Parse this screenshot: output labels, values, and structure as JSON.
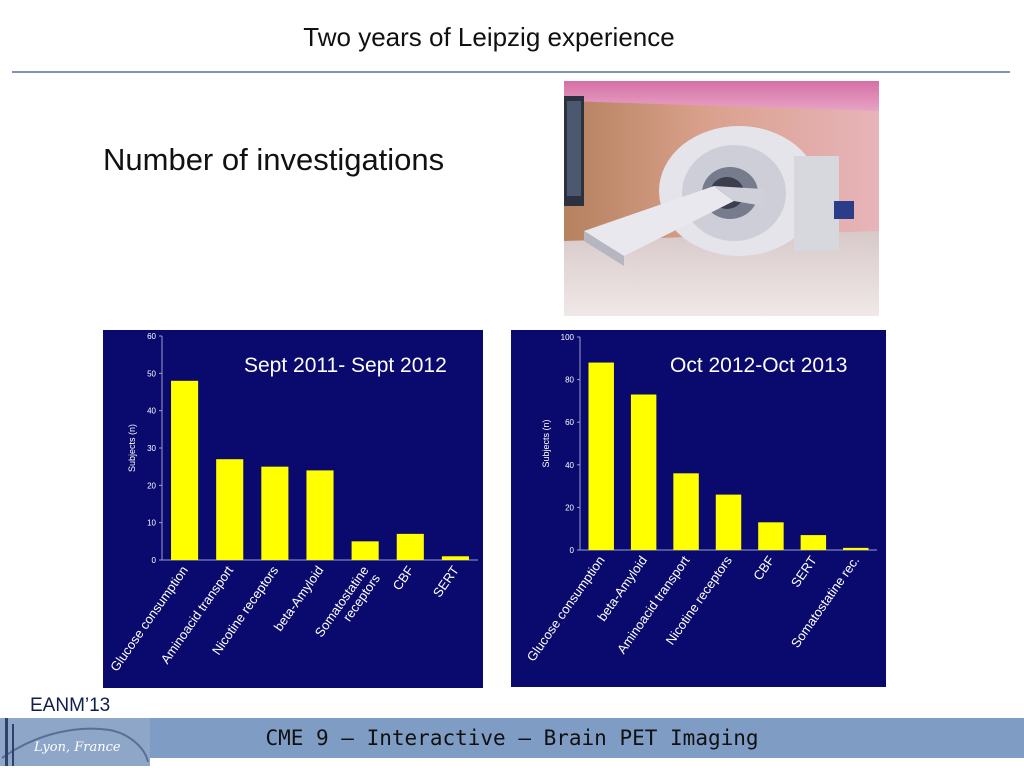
{
  "slide": {
    "title": "Two years of Leipzig experience",
    "heading": "Number of investigations"
  },
  "footer": {
    "text": "CME 9 – Interactive – Brain PET Imaging",
    "logo_text": "EANM’13",
    "logo_city": "Lyon, France"
  },
  "colors": {
    "chart_background": "#0a0a6e",
    "bar": "#ffff00",
    "footer_bar": "#7f9cc4",
    "title_rule": "#7f95ad"
  },
  "chart_data": [
    {
      "type": "bar",
      "title": "Sept 2011- Sept 2012",
      "ylabel": "Subjects (n)",
      "xlabel": "",
      "ylim": [
        0,
        60
      ],
      "yticks": [
        0,
        10,
        20,
        30,
        40,
        50,
        60
      ],
      "categories": [
        "Glucose consumption",
        "Aminoacid transport",
        "Nicotine receptors",
        "beta-Amyloid",
        "Somatostatine receptors",
        "CBF",
        "SERT"
      ],
      "category_lines": [
        [
          "Glucose consumption"
        ],
        [
          "Aminoacid transport"
        ],
        [
          "Nicotine receptors"
        ],
        [
          "beta-Amyloid"
        ],
        [
          "Somatostatine",
          "receptors"
        ],
        [
          "CBF"
        ],
        [
          "SERT"
        ]
      ],
      "values": [
        48,
        27,
        25,
        24,
        5,
        7,
        1
      ]
    },
    {
      "type": "bar",
      "title": "Oct 2012-Oct 2013",
      "ylabel": "Subjects (n)",
      "xlabel": "",
      "ylim": [
        0,
        100
      ],
      "yticks": [
        0,
        20,
        40,
        60,
        80,
        100
      ],
      "categories": [
        "Glucose consumption",
        "beta-Amyloid",
        "Aminoacid transport",
        "Nicotine receptors",
        "CBF",
        "SERT",
        "Somatostatine rec."
      ],
      "category_lines": [
        [
          "Glucose consumption"
        ],
        [
          "beta-Amyloid"
        ],
        [
          "Aminoacid transport"
        ],
        [
          "Nicotine receptors"
        ],
        [
          "CBF"
        ],
        [
          "SERT"
        ],
        [
          "Somatostatine rec."
        ]
      ],
      "values": [
        88,
        73,
        36,
        26,
        13,
        7,
        1
      ]
    }
  ]
}
